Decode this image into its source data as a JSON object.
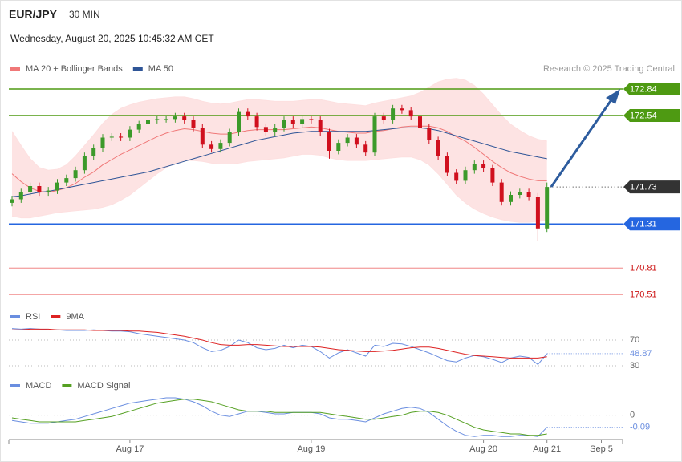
{
  "chart_data": {
    "type": "candlestick",
    "title": "EUR/JPY",
    "timeframe": "30 MIN",
    "subtitle": "Wednesday, August 20, 2025 10:45:32 AM CET",
    "source": "Research © 2025 Trading Central",
    "categories": [
      null,
      null,
      null,
      null,
      null,
      null,
      null,
      null,
      null,
      null,
      null,
      null,
      null,
      "Aug 17",
      null,
      null,
      null,
      null,
      null,
      null,
      null,
      null,
      null,
      null,
      null,
      null,
      null,
      null,
      null,
      null,
      null,
      null,
      null,
      "Aug 19",
      null,
      null,
      null,
      null,
      null,
      null,
      null,
      null,
      null,
      null,
      null,
      null,
      null,
      null,
      null,
      null,
      null,
      null,
      "Aug 20",
      null,
      null,
      null,
      null,
      null,
      null,
      "Aug 21",
      null,
      null,
      null,
      null,
      null,
      "Sep 5",
      null,
      null
    ],
    "open": [
      171.55,
      171.59,
      171.67,
      171.74,
      171.67,
      171.69,
      171.78,
      171.83,
      171.92,
      172.08,
      172.17,
      172.29,
      172.3,
      172.29,
      172.38,
      172.44,
      172.49,
      172.5,
      172.5,
      172.53,
      172.49,
      172.4,
      172.21,
      172.16,
      172.23,
      172.35,
      172.58,
      172.53,
      172.41,
      172.35,
      172.4,
      172.49,
      172.44,
      172.5,
      172.49,
      172.35,
      172.14,
      172.23,
      172.29,
      172.21,
      172.12,
      172.53,
      172.49,
      172.62,
      172.6,
      172.53,
      172.4,
      172.26,
      172.08,
      171.89,
      171.8,
      171.92,
      171.99,
      171.94,
      171.78,
      171.56,
      171.64,
      171.67,
      171.62,
      171.26,
      null,
      null,
      null,
      null,
      null,
      null,
      null,
      null
    ],
    "high": [
      171.63,
      171.71,
      171.78,
      171.78,
      171.73,
      171.82,
      171.87,
      171.96,
      172.12,
      172.21,
      172.33,
      172.34,
      172.34,
      172.42,
      172.48,
      172.53,
      172.54,
      172.54,
      172.57,
      172.57,
      172.53,
      172.44,
      172.25,
      172.27,
      172.39,
      172.62,
      172.62,
      172.57,
      172.45,
      172.44,
      172.53,
      172.53,
      172.54,
      172.54,
      172.53,
      172.39,
      172.27,
      172.33,
      172.33,
      172.25,
      172.57,
      172.57,
      172.66,
      172.66,
      172.64,
      172.57,
      172.44,
      172.3,
      172.12,
      171.93,
      171.96,
      172.03,
      172.03,
      171.98,
      171.82,
      171.68,
      171.71,
      171.71,
      171.66,
      171.78,
      null,
      null,
      null,
      null,
      null,
      null,
      null,
      null
    ],
    "low": [
      171.51,
      171.55,
      171.63,
      171.63,
      171.63,
      171.65,
      171.74,
      171.79,
      171.88,
      172.04,
      172.13,
      172.25,
      172.25,
      172.25,
      172.34,
      172.4,
      172.45,
      172.46,
      172.46,
      172.45,
      172.36,
      172.17,
      172.12,
      172.12,
      172.19,
      172.31,
      172.49,
      172.37,
      172.31,
      172.31,
      172.36,
      172.4,
      172.4,
      172.45,
      172.31,
      172.05,
      172.1,
      172.19,
      172.17,
      172.08,
      172.08,
      172.45,
      172.45,
      172.56,
      172.49,
      172.36,
      172.22,
      172.04,
      171.85,
      171.76,
      171.76,
      171.88,
      171.9,
      171.74,
      171.52,
      171.52,
      171.6,
      171.58,
      171.12,
      171.22,
      null,
      null,
      null,
      null,
      null,
      null,
      null,
      null
    ],
    "close": [
      171.59,
      171.67,
      171.74,
      171.67,
      171.69,
      171.78,
      171.83,
      171.92,
      172.08,
      172.17,
      172.29,
      172.3,
      172.29,
      172.38,
      172.44,
      172.49,
      172.5,
      172.5,
      172.53,
      172.49,
      172.4,
      172.21,
      172.16,
      172.23,
      172.35,
      172.58,
      172.53,
      172.41,
      172.35,
      172.4,
      172.49,
      172.44,
      172.5,
      172.49,
      172.35,
      172.14,
      172.23,
      172.29,
      172.21,
      172.12,
      172.53,
      172.49,
      172.62,
      172.6,
      172.53,
      172.4,
      172.26,
      172.08,
      171.89,
      171.8,
      171.92,
      171.99,
      171.94,
      171.78,
      171.56,
      171.64,
      171.67,
      171.62,
      171.26,
      171.73,
      null,
      null,
      null,
      null,
      null,
      null,
      null,
      null
    ],
    "up_color": "#3c9a2a",
    "down_color": "#d0101e",
    "ylim": [
      170.4,
      173.0
    ],
    "overlays": [
      {
        "name": "MA 20 + Bollinger Bands",
        "color": "#f07878",
        "band_color": "#fde0e0",
        "values": [
          171.88,
          171.79,
          171.72,
          171.68,
          171.67,
          171.69,
          171.72,
          171.77,
          171.84,
          171.9,
          171.98,
          172.04,
          172.1,
          172.15,
          172.2,
          172.25,
          172.3,
          172.34,
          172.37,
          172.39,
          172.38,
          172.36,
          172.34,
          172.33,
          172.33,
          172.35,
          172.37,
          172.38,
          172.38,
          172.38,
          172.38,
          172.39,
          172.4,
          172.41,
          172.4,
          172.38,
          172.36,
          172.35,
          172.34,
          172.34,
          172.36,
          172.37,
          172.39,
          172.41,
          172.42,
          172.42,
          172.42,
          172.4,
          172.36,
          172.3,
          172.25,
          172.18,
          172.1,
          172.02,
          171.95,
          171.89,
          171.85,
          171.82,
          171.8,
          171.8,
          null,
          null,
          null,
          null,
          null,
          null,
          null,
          null
        ],
        "upper": [
          172.36,
          172.2,
          172.05,
          171.95,
          171.92,
          171.93,
          171.98,
          172.08,
          172.2,
          172.32,
          172.45,
          172.55,
          172.62,
          172.66,
          172.69,
          172.71,
          172.73,
          172.74,
          172.75,
          172.75,
          172.73,
          172.7,
          172.68,
          172.67,
          172.68,
          172.7,
          172.72,
          172.72,
          172.71,
          172.7,
          172.7,
          172.7,
          172.71,
          172.72,
          172.72,
          172.7,
          172.68,
          172.67,
          172.66,
          172.65,
          172.68,
          172.7,
          172.72,
          172.74,
          172.76,
          172.8,
          172.86,
          172.92,
          172.95,
          172.96,
          172.94,
          172.88,
          172.78,
          172.66,
          172.54,
          172.44,
          172.37,
          172.31,
          172.27,
          172.25,
          null,
          null,
          null,
          null,
          null,
          null,
          null,
          null
        ],
        "lower": [
          171.4,
          171.38,
          171.38,
          171.4,
          171.42,
          171.44,
          171.45,
          171.46,
          171.47,
          171.48,
          171.5,
          171.53,
          171.58,
          171.64,
          171.72,
          171.8,
          171.88,
          171.95,
          172.0,
          172.03,
          172.03,
          172.02,
          172.0,
          171.99,
          171.99,
          172.0,
          172.02,
          172.03,
          172.04,
          172.05,
          172.06,
          172.08,
          172.1,
          172.1,
          172.09,
          172.06,
          172.04,
          172.03,
          172.03,
          172.03,
          172.04,
          172.05,
          172.06,
          172.07,
          172.07,
          172.04,
          171.98,
          171.88,
          171.76,
          171.64,
          171.55,
          171.48,
          171.43,
          171.39,
          171.36,
          171.34,
          171.33,
          171.33,
          171.34,
          171.35,
          null,
          null,
          null,
          null,
          null,
          null,
          null,
          null
        ]
      },
      {
        "name": "MA 50",
        "color": "#2f5597",
        "values": [
          171.62,
          171.63,
          171.65,
          171.67,
          171.68,
          171.7,
          171.72,
          171.74,
          171.76,
          171.78,
          171.8,
          171.82,
          171.84,
          171.86,
          171.88,
          171.9,
          171.93,
          171.96,
          171.99,
          172.02,
          172.05,
          172.08,
          172.11,
          172.14,
          172.17,
          172.2,
          172.23,
          172.26,
          172.28,
          172.3,
          172.32,
          172.34,
          172.35,
          172.36,
          172.36,
          172.36,
          172.36,
          172.36,
          172.36,
          172.36,
          172.37,
          172.38,
          172.39,
          172.4,
          172.4,
          172.4,
          172.39,
          172.37,
          172.34,
          172.31,
          172.28,
          172.25,
          172.22,
          172.19,
          172.16,
          172.13,
          172.11,
          172.09,
          172.07,
          172.05,
          null,
          null,
          null,
          null,
          null,
          null,
          null,
          null
        ]
      }
    ],
    "levels": [
      {
        "value": 172.84,
        "color": "#4e9a12",
        "style": "tag"
      },
      {
        "value": 172.54,
        "color": "#4e9a12",
        "style": "tag"
      },
      {
        "value": 171.31,
        "color": "#2566e0",
        "style": "tag"
      },
      {
        "value": 170.81,
        "color": "#f4a6a6",
        "text_color": "#cc1111",
        "style": "text"
      },
      {
        "value": 170.51,
        "color": "#f4a6a6",
        "text_color": "#cc1111",
        "style": "text"
      }
    ],
    "current_color": "#333333",
    "rsi": {
      "ylim": [
        10,
        95
      ],
      "yticks": [
        30,
        70
      ],
      "series": [
        {
          "name": "RSI",
          "color": "#6a8ee0",
          "values": [
            88,
            87,
            88,
            87,
            86,
            86,
            85,
            85,
            85,
            86,
            85,
            84,
            84,
            83,
            80,
            78,
            76,
            74,
            72,
            70,
            66,
            58,
            52,
            54,
            60,
            70,
            66,
            58,
            55,
            57,
            62,
            58,
            62,
            60,
            52,
            42,
            50,
            55,
            50,
            45,
            62,
            60,
            65,
            64,
            60,
            55,
            50,
            44,
            38,
            36,
            42,
            46,
            44,
            40,
            35,
            42,
            45,
            43,
            32,
            48.87,
            null,
            null,
            null,
            null,
            null,
            null,
            null,
            null
          ]
        },
        {
          "name": "9MA",
          "color": "#dd2222",
          "values": [
            86,
            86,
            87,
            87,
            87,
            86,
            86,
            86,
            86,
            85,
            85,
            85,
            85,
            84,
            84,
            83,
            82,
            80,
            78,
            76,
            73,
            70,
            66,
            63,
            62,
            62,
            63,
            63,
            62,
            61,
            60,
            60,
            60,
            60,
            59,
            57,
            55,
            54,
            53,
            52,
            52,
            53,
            54,
            56,
            58,
            59,
            59,
            57,
            54,
            51,
            48,
            46,
            45,
            44,
            43,
            42,
            42,
            42,
            42,
            44,
            null,
            null,
            null,
            null,
            null,
            null,
            null,
            null
          ]
        }
      ]
    },
    "macd": {
      "ylim": [
        -0.2,
        0.16
      ],
      "yticks": [
        0
      ],
      "series": [
        {
          "name": "MACD",
          "color": "#6a8ee0",
          "values": [
            -0.04,
            -0.05,
            -0.06,
            -0.06,
            -0.06,
            -0.05,
            -0.04,
            -0.03,
            -0.01,
            0.01,
            0.03,
            0.05,
            0.07,
            0.09,
            0.1,
            0.11,
            0.12,
            0.13,
            0.13,
            0.12,
            0.1,
            0.07,
            0.03,
            0.0,
            -0.01,
            0.01,
            0.03,
            0.03,
            0.02,
            0.01,
            0.01,
            0.02,
            0.02,
            0.02,
            0.01,
            -0.02,
            -0.03,
            -0.03,
            -0.04,
            -0.05,
            -0.02,
            0.01,
            0.03,
            0.05,
            0.06,
            0.05,
            0.02,
            -0.03,
            -0.08,
            -0.12,
            -0.15,
            -0.16,
            -0.15,
            -0.15,
            -0.16,
            -0.16,
            -0.15,
            -0.15,
            -0.16,
            -0.09,
            null,
            null,
            null,
            null,
            null,
            null,
            null,
            null
          ]
        },
        {
          "name": "MACD Signal",
          "color": "#55a022",
          "values": [
            -0.02,
            -0.03,
            -0.04,
            -0.05,
            -0.05,
            -0.05,
            -0.05,
            -0.05,
            -0.04,
            -0.03,
            -0.02,
            -0.01,
            0.01,
            0.03,
            0.05,
            0.07,
            0.09,
            0.1,
            0.11,
            0.12,
            0.12,
            0.11,
            0.1,
            0.08,
            0.06,
            0.04,
            0.03,
            0.03,
            0.03,
            0.02,
            0.02,
            0.02,
            0.02,
            0.02,
            0.02,
            0.01,
            0.0,
            -0.01,
            -0.02,
            -0.03,
            -0.03,
            -0.02,
            -0.01,
            0.0,
            0.02,
            0.03,
            0.03,
            0.02,
            0.0,
            -0.03,
            -0.06,
            -0.09,
            -0.11,
            -0.12,
            -0.13,
            -0.14,
            -0.14,
            -0.15,
            -0.15,
            -0.14,
            null,
            null,
            null,
            null,
            null,
            null,
            null,
            null
          ]
        }
      ]
    }
  }
}
